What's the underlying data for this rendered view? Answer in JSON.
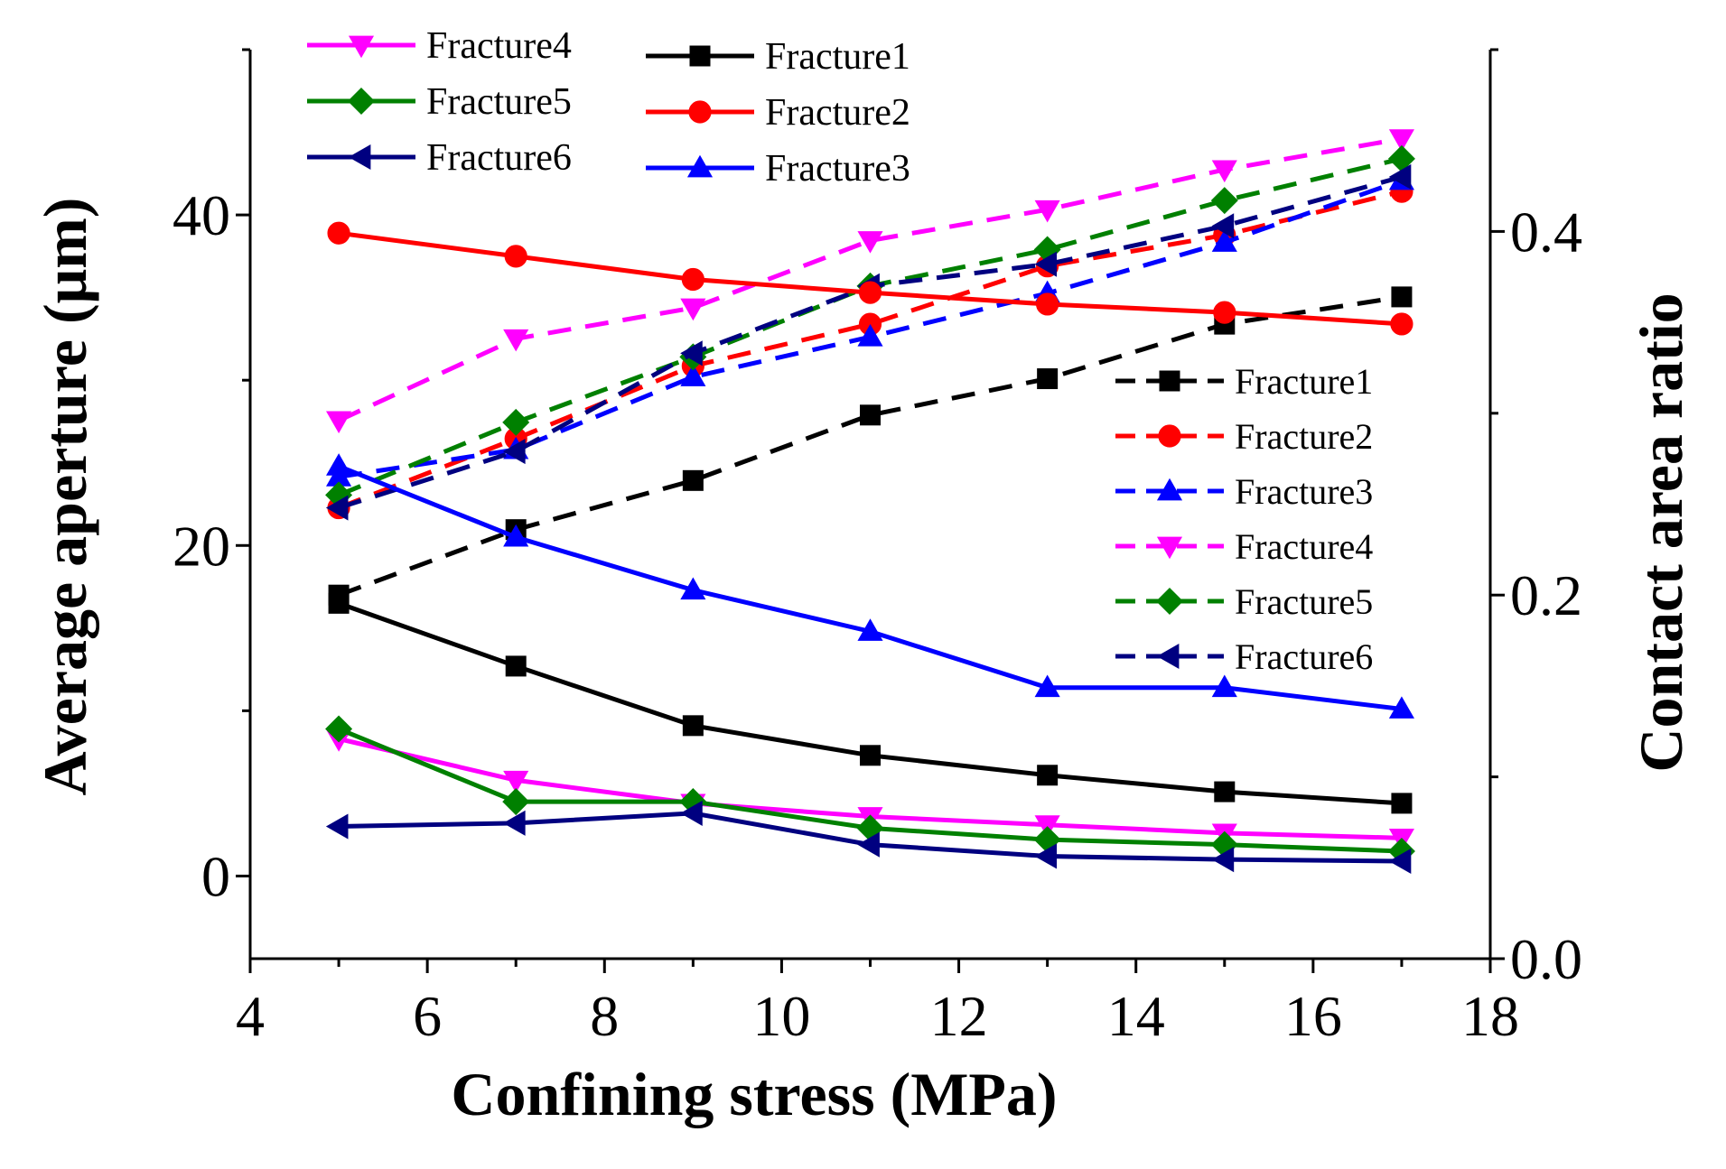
{
  "chart_data": {
    "type": "line",
    "title": "",
    "xlabel": "Confining stress (MPa)",
    "ylabel_left": "Average aperture (μm)",
    "ylabel_right": "Contact area ratio",
    "xlim": [
      4,
      18
    ],
    "ylim_left": [
      -5,
      50
    ],
    "ylim_right": [
      0.0,
      0.5
    ],
    "x_ticks": [
      "4",
      "6",
      "8",
      "10",
      "12",
      "14",
      "16",
      "18"
    ],
    "y_left_ticks": [
      "0",
      "20",
      "40"
    ],
    "y_right_ticks": [
      "0.0",
      "0.2",
      "0.4"
    ],
    "grid": false,
    "x": [
      5,
      7,
      9,
      11,
      13,
      15,
      17
    ],
    "aperture_series": [
      {
        "name": "Fracture1",
        "color": "#000000",
        "marker": "square",
        "values": [
          16.5,
          12.7,
          9.1,
          7.3,
          6.1,
          5.1,
          4.4
        ]
      },
      {
        "name": "Fracture2",
        "color": "#ff0000",
        "marker": "circle",
        "values": [
          38.9,
          37.5,
          36.1,
          35.3,
          34.6,
          34.1,
          33.4
        ]
      },
      {
        "name": "Fracture3",
        "color": "#0000ff",
        "marker": "triangle-up",
        "values": [
          24.8,
          20.5,
          17.3,
          14.8,
          11.4,
          11.4,
          10.1
        ]
      },
      {
        "name": "Fracture4",
        "color": "#ff00ff",
        "marker": "triangle-down",
        "values": [
          8.3,
          5.8,
          4.4,
          3.6,
          3.1,
          2.6,
          2.3
        ]
      },
      {
        "name": "Fracture5",
        "color": "#008000",
        "marker": "diamond",
        "values": [
          8.9,
          4.5,
          4.5,
          2.9,
          2.2,
          1.9,
          1.5
        ]
      },
      {
        "name": "Fracture6",
        "color": "#000080",
        "marker": "triangle-left",
        "values": [
          3.0,
          3.2,
          3.8,
          1.9,
          1.2,
          1.0,
          0.9
        ]
      }
    ],
    "contact_ratio_series": [
      {
        "name": "Fracture1",
        "color": "#000000",
        "marker": "square",
        "values": [
          0.2,
          0.236,
          0.263,
          0.299,
          0.319,
          0.349,
          0.364
        ]
      },
      {
        "name": "Fracture2",
        "color": "#ff0000",
        "marker": "circle",
        "values": [
          0.248,
          0.286,
          0.326,
          0.349,
          0.381,
          0.398,
          0.422
        ]
      },
      {
        "name": "Fracture3",
        "color": "#0000ff",
        "marker": "triangle-up",
        "values": [
          0.265,
          0.28,
          0.32,
          0.342,
          0.366,
          0.394,
          0.428
        ]
      },
      {
        "name": "Fracture4",
        "color": "#ff00ff",
        "marker": "triangle-down",
        "values": [
          0.296,
          0.341,
          0.358,
          0.395,
          0.412,
          0.434,
          0.451
        ]
      },
      {
        "name": "Fracture5",
        "color": "#008000",
        "marker": "diamond",
        "values": [
          0.255,
          0.295,
          0.331,
          0.37,
          0.39,
          0.417,
          0.44
        ]
      },
      {
        "name": "Fracture6",
        "color": "#000080",
        "marker": "triangle-left",
        "values": [
          0.248,
          0.279,
          0.333,
          0.37,
          0.382,
          0.403,
          0.43
        ]
      }
    ],
    "legend_solid_left_col": [
      "Fracture4",
      "Fracture5",
      "Fracture6"
    ],
    "legend_solid_right_col": [
      "Fracture1",
      "Fracture2",
      "Fracture3"
    ],
    "legend_solid_placement": "top-left",
    "legend_dashed": [
      "Fracture1",
      "Fracture2",
      "Fracture3",
      "Fracture4",
      "Fracture5",
      "Fracture6"
    ],
    "legend_dashed_placement": "center-right"
  }
}
